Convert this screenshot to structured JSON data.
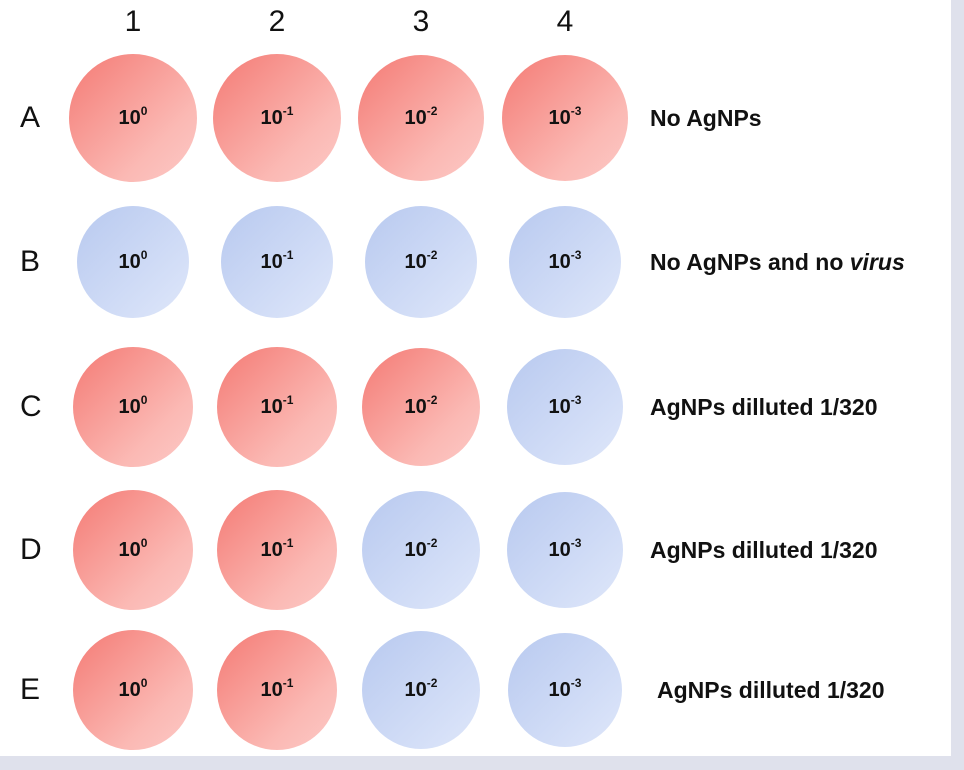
{
  "columns": [
    "1",
    "2",
    "3",
    "4"
  ],
  "colors": {
    "positive": "#f7958f",
    "negative": "#c6d4f3"
  },
  "rows": [
    {
      "label": "A",
      "description": "No AgNPs",
      "description_italic": "",
      "wells": [
        {
          "base": "10",
          "exp": "0",
          "state": "positive"
        },
        {
          "base": "10",
          "exp": "-1",
          "state": "positive"
        },
        {
          "base": "10",
          "exp": "-2",
          "state": "positive"
        },
        {
          "base": "10",
          "exp": "-3",
          "state": "positive"
        }
      ]
    },
    {
      "label": "B",
      "description": "No AgNPs and no ",
      "description_italic": "virus",
      "wells": [
        {
          "base": "10",
          "exp": "0",
          "state": "negative"
        },
        {
          "base": "10",
          "exp": "-1",
          "state": "negative"
        },
        {
          "base": "10",
          "exp": "-2",
          "state": "negative"
        },
        {
          "base": "10",
          "exp": "-3",
          "state": "negative"
        }
      ]
    },
    {
      "label": "C",
      "description": "AgNPs dilluted 1/320",
      "description_italic": "",
      "wells": [
        {
          "base": "10",
          "exp": "0",
          "state": "positive"
        },
        {
          "base": "10",
          "exp": "-1",
          "state": "positive"
        },
        {
          "base": "10",
          "exp": "-2",
          "state": "positive"
        },
        {
          "base": "10",
          "exp": "-3",
          "state": "negative"
        }
      ]
    },
    {
      "label": "D",
      "description": "AgNPs dilluted 1/320",
      "description_italic": "",
      "wells": [
        {
          "base": "10",
          "exp": "0",
          "state": "positive"
        },
        {
          "base": "10",
          "exp": "-1",
          "state": "positive"
        },
        {
          "base": "10",
          "exp": "-2",
          "state": "negative"
        },
        {
          "base": "10",
          "exp": "-3",
          "state": "negative"
        }
      ]
    },
    {
      "label": "E",
      "description": "AgNPs dilluted 1/320",
      "description_italic": "",
      "wells": [
        {
          "base": "10",
          "exp": "0",
          "state": "positive"
        },
        {
          "base": "10",
          "exp": "-1",
          "state": "positive"
        },
        {
          "base": "10",
          "exp": "-2",
          "state": "negative"
        },
        {
          "base": "10",
          "exp": "-3",
          "state": "negative"
        }
      ]
    }
  ]
}
